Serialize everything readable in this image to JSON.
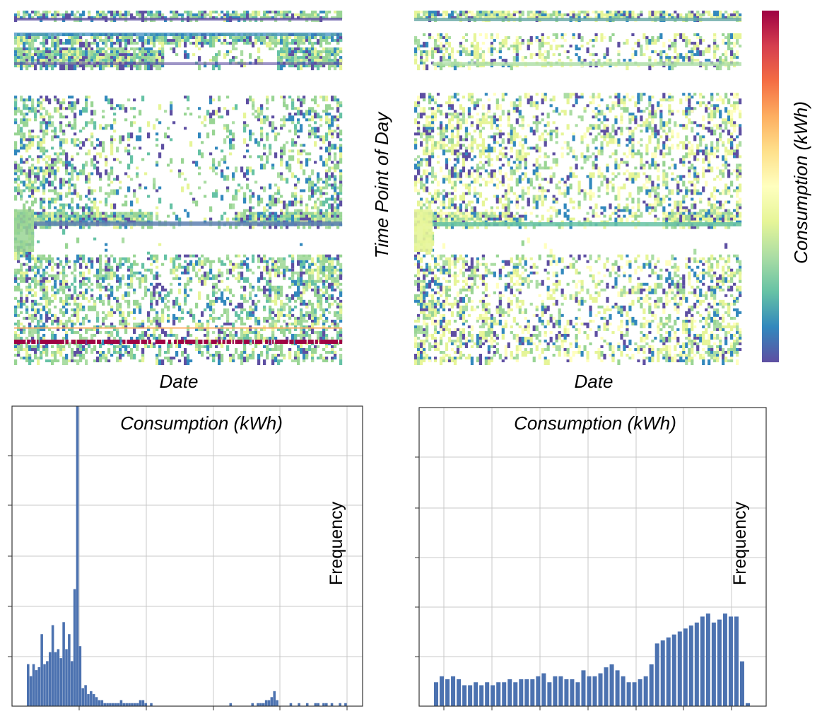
{
  "chart_data": [
    {
      "type": "heatmap",
      "xlabel": "Date",
      "ylabel": "Time Point of Day",
      "colorbar_label": "Consumption (kWh)",
      "colormap": "Spectral_r",
      "colors": {
        "low": "#5e4fa2",
        "mid_low": "#99d594",
        "mid": "#ffffbf",
        "mid_high": "#fc8d59",
        "high": "#9e0142"
      },
      "grid": false
    },
    {
      "type": "heatmap",
      "xlabel": "Date",
      "ylabel": "Time Point of Day",
      "colorbar_label": "Consumption (kWh)",
      "colormap": "Spectral_r",
      "grid": false
    },
    {
      "type": "bar",
      "title": "Consumption (kWh)",
      "ylabel": "Frequency",
      "xlim": [
        0,
        100
      ],
      "ylim": [
        0,
        100
      ],
      "grid": true,
      "bar_color": "#4c72b0",
      "values": [
        14,
        10,
        14,
        12,
        13,
        24,
        14,
        15,
        18,
        27,
        18,
        19,
        16,
        28,
        19,
        24,
        15,
        39,
        100,
        20,
        6,
        7,
        4,
        5,
        4,
        3,
        2,
        2,
        1,
        1,
        1,
        1,
        1,
        1,
        2,
        1,
        1,
        1,
        1,
        1,
        1,
        2,
        2,
        1,
        0,
        1,
        0,
        0,
        0,
        0,
        0,
        0,
        0,
        0,
        0,
        0,
        0,
        0,
        0,
        0,
        0,
        0,
        0,
        0,
        0,
        0,
        0,
        0,
        0,
        0,
        0,
        0,
        0,
        0,
        1,
        0,
        0,
        0,
        0,
        0,
        0,
        0,
        1,
        0,
        1,
        1,
        1,
        2,
        2,
        3,
        5,
        2,
        0,
        0,
        0,
        0,
        1,
        0,
        0,
        1,
        0,
        0,
        1,
        0,
        0,
        1,
        1,
        0,
        1,
        1,
        0,
        1,
        0,
        0,
        1,
        0,
        1
      ]
    },
    {
      "type": "bar",
      "title": "Consumption (kWh)",
      "ylabel": "Frequency",
      "xlim": [
        0,
        100
      ],
      "ylim": [
        0,
        100
      ],
      "grid": true,
      "bar_color": "#4c72b0",
      "values": [
        8,
        10,
        9,
        10,
        9,
        7,
        7,
        8,
        7,
        8,
        7,
        8,
        8,
        9,
        8,
        9,
        9,
        9,
        10,
        11,
        8,
        10,
        10,
        9,
        9,
        8,
        12,
        10,
        10,
        11,
        13,
        14,
        12,
        10,
        8,
        8,
        9,
        10,
        14,
        21,
        22,
        23,
        24,
        25,
        26,
        27,
        28,
        30,
        31,
        28,
        29,
        31,
        30,
        30,
        15,
        1
      ]
    }
  ]
}
